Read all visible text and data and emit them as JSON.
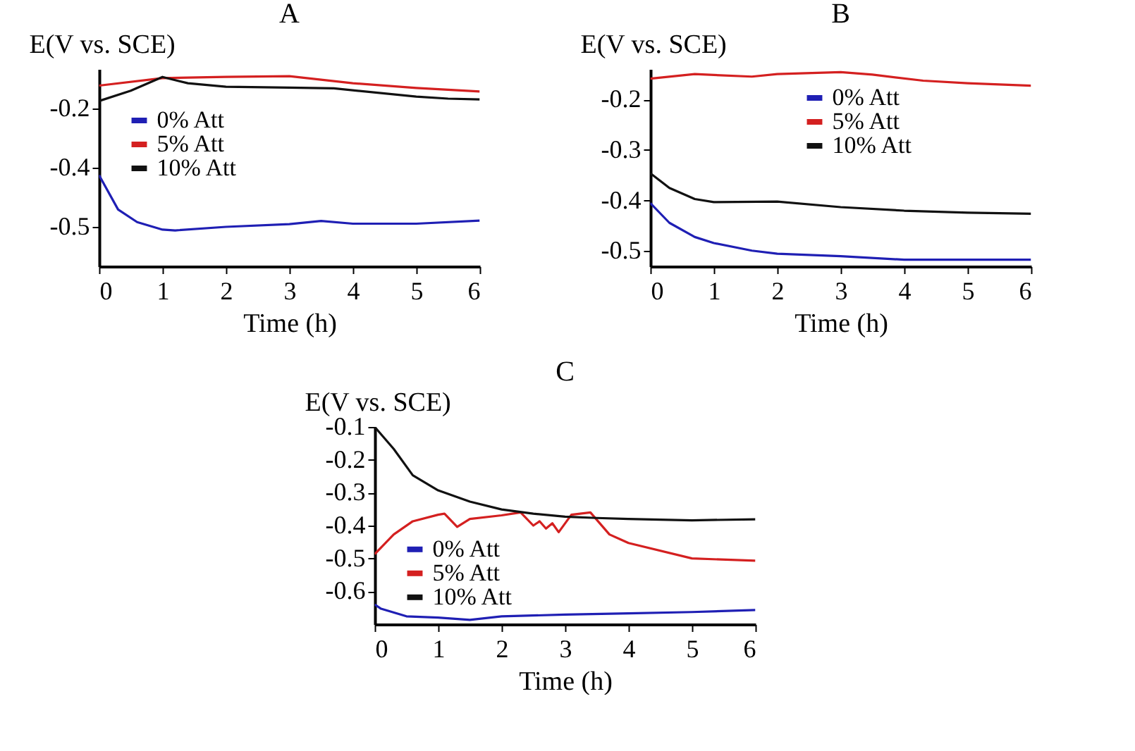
{
  "chart_data": [
    {
      "type": "line",
      "title": "A",
      "xlabel": "Time (h)",
      "ylabel": "E(V vs. SCE)",
      "xlim": [
        0,
        6
      ],
      "xticks": [
        0,
        1,
        2,
        3,
        4,
        5,
        6
      ],
      "ylim": [
        -0.6,
        -0.1
      ],
      "yticks": [
        -0.2,
        {
          "value": -0.35,
          "label": "-0.4"
        },
        -0.5
      ],
      "legend": "left",
      "series": [
        {
          "name": "0% Att",
          "color": "#1f1fb4",
          "x": [
            0,
            0.3,
            0.6,
            1,
            1.2,
            2,
            3,
            3.5,
            4,
            5,
            6
          ],
          "values": [
            -0.369,
            -0.456,
            -0.488,
            -0.507,
            -0.509,
            -0.5,
            -0.493,
            -0.485,
            -0.492,
            -0.492,
            -0.484
          ]
        },
        {
          "name": "5% Att",
          "color": "#d42020",
          "x": [
            0,
            1,
            2,
            3,
            4,
            5,
            6
          ],
          "values": [
            -0.142,
            -0.123,
            -0.12,
            -0.118,
            -0.136,
            -0.148,
            -0.157
          ]
        },
        {
          "name": "10% Att",
          "color": "#111111",
          "x": [
            0,
            0.5,
            1,
            1.4,
            2,
            3,
            3.7,
            5,
            5.5,
            6
          ],
          "values": [
            -0.181,
            -0.155,
            -0.12,
            -0.136,
            -0.145,
            -0.147,
            -0.149,
            -0.17,
            -0.175,
            -0.177
          ]
        }
      ]
    },
    {
      "type": "line",
      "title": "B",
      "xlabel": "Time (h)",
      "ylabel": "E(V vs. SCE)",
      "xlim": [
        0,
        6
      ],
      "xticks": [
        0,
        1,
        2,
        3,
        4,
        5,
        6
      ],
      "ylim": [
        -0.53,
        -0.14
      ],
      "yticks": [
        -0.2,
        -0.3,
        -0.4,
        -0.5
      ],
      "legend": "top",
      "series": [
        {
          "name": "0% Att",
          "color": "#1f1fb4",
          "x": [
            0,
            0.3,
            0.7,
            1,
            1.6,
            2,
            3,
            4,
            5,
            6
          ],
          "values": [
            -0.405,
            -0.444,
            -0.472,
            -0.484,
            -0.499,
            -0.505,
            -0.51,
            -0.517,
            -0.517,
            -0.517
          ]
        },
        {
          "name": "5% Att",
          "color": "#d42020",
          "x": [
            0,
            0.7,
            1.6,
            2,
            3,
            3.5,
            4.3,
            5,
            6
          ],
          "values": [
            -0.159,
            -0.15,
            -0.155,
            -0.15,
            -0.146,
            -0.151,
            -0.163,
            -0.168,
            -0.173
          ]
        },
        {
          "name": "10% Att",
          "color": "#111111",
          "x": [
            0,
            0.3,
            0.7,
            1,
            2,
            3,
            4,
            5,
            6
          ],
          "values": [
            -0.346,
            -0.375,
            -0.397,
            -0.403,
            -0.402,
            -0.413,
            -0.42,
            -0.424,
            -0.426
          ]
        }
      ]
    },
    {
      "type": "line",
      "title": "C",
      "xlabel": "Time (h)",
      "ylabel": "E(V vs. SCE)",
      "xlim": [
        0,
        6
      ],
      "xticks": [
        0,
        1,
        2,
        3,
        4,
        5,
        6
      ],
      "ylim": [
        -0.7,
        -0.1
      ],
      "yticks": [
        -0.1,
        -0.2,
        -0.3,
        -0.4,
        -0.5,
        -0.6
      ],
      "legend": "bottom left",
      "series": [
        {
          "name": "0% Att",
          "color": "#1f1fb4",
          "x": [
            0,
            0.1,
            0.5,
            1,
            1.5,
            2,
            3,
            4,
            5,
            6
          ],
          "values": [
            -0.64,
            -0.653,
            -0.676,
            -0.68,
            -0.687,
            -0.676,
            -0.671,
            -0.667,
            -0.663,
            -0.657
          ]
        },
        {
          "name": "5% Att",
          "color": "#d42020",
          "x": [
            0,
            0.3,
            0.6,
            1,
            1.1,
            1.3,
            1.5,
            2,
            2.3,
            2.5,
            2.6,
            2.7,
            2.8,
            2.9,
            3.1,
            3.4,
            3.7,
            4,
            5,
            6
          ],
          "values": [
            -0.487,
            -0.427,
            -0.387,
            -0.367,
            -0.364,
            -0.404,
            -0.38,
            -0.369,
            -0.36,
            -0.4,
            -0.387,
            -0.409,
            -0.393,
            -0.42,
            -0.367,
            -0.36,
            -0.427,
            -0.453,
            -0.5,
            -0.507
          ]
        },
        {
          "name": "10% Att",
          "color": "#111111",
          "x": [
            0,
            0.3,
            0.6,
            1,
            1.5,
            2,
            2.5,
            3,
            3.5,
            4,
            5,
            6
          ],
          "values": [
            -0.1,
            -0.167,
            -0.247,
            -0.293,
            -0.327,
            -0.351,
            -0.364,
            -0.373,
            -0.377,
            -0.38,
            -0.384,
            -0.381
          ]
        }
      ]
    }
  ]
}
